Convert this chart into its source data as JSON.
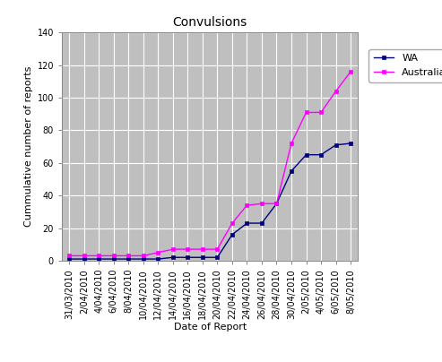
{
  "title": "Convulsions",
  "xlabel": "Date of Report",
  "ylabel": "Cummulative number of reports",
  "ylim": [
    0,
    140
  ],
  "yticks": [
    0,
    20,
    40,
    60,
    80,
    100,
    120,
    140
  ],
  "dates": [
    "31/03/2010",
    "2/04/2010",
    "4/04/2010",
    "6/04/2010",
    "8/04/2010",
    "10/04/2010",
    "12/04/2010",
    "14/04/2010",
    "16/04/2010",
    "18/04/2010",
    "20/04/2010",
    "22/04/2010",
    "24/04/2010",
    "26/04/2010",
    "28/04/2010",
    "30/04/2010",
    "2/05/2010",
    "4/05/2010",
    "6/05/2010",
    "8/05/2010"
  ],
  "wa_values": [
    1,
    1,
    1,
    1,
    1,
    1,
    1,
    2,
    2,
    2,
    2,
    16,
    23,
    23,
    35,
    55,
    65,
    65,
    71,
    72
  ],
  "australia_values": [
    3,
    3,
    3,
    3,
    3,
    3,
    5,
    7,
    7,
    7,
    7,
    23,
    34,
    35,
    35,
    72,
    91,
    91,
    104,
    116
  ],
  "wa_color": "#000080",
  "australia_color": "#ff00ff",
  "plot_bg_color": "#bfbfbf",
  "fig_bg_color": "#ffffff",
  "grid_color": "#ffffff",
  "wa_label": "WA",
  "australia_label": "Australia",
  "title_fontsize": 10,
  "axis_label_fontsize": 8,
  "tick_fontsize": 7,
  "legend_fontsize": 8
}
